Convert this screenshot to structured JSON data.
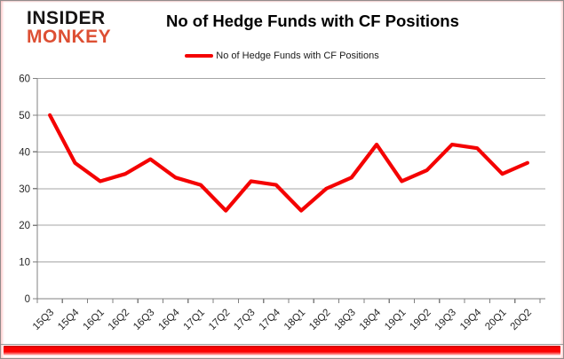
{
  "header": {
    "logo": {
      "line1": "INSIDER",
      "line2": "MONKEY"
    },
    "title": "No of Hedge Funds with CF Positions"
  },
  "legend": {
    "label": "No of Hedge Funds with CF Positions"
  },
  "colors": {
    "line": "#f40202",
    "grid": "#a6a6a6",
    "axis": "#808080",
    "tick_label": "#262626",
    "logo_black": "#161414",
    "logo_red": "#dd4f33",
    "bottom_bar": "#fb0202"
  },
  "chart_data": {
    "type": "line",
    "title": "No of Hedge Funds with CF Positions",
    "categories": [
      "15Q3",
      "15Q4",
      "16Q1",
      "16Q2",
      "16Q3",
      "16Q4",
      "17Q1",
      "17Q2",
      "17Q3",
      "17Q4",
      "18Q1",
      "18Q2",
      "18Q3",
      "18Q4",
      "19Q1",
      "19Q2",
      "19Q3",
      "19Q4",
      "20Q1",
      "20Q2"
    ],
    "series": [
      {
        "name": "No of Hedge Funds with CF Positions",
        "values": [
          50,
          37,
          32,
          34,
          38,
          33,
          31,
          24,
          32,
          31,
          24,
          30,
          33,
          42,
          32,
          35,
          42,
          41,
          34,
          37
        ]
      }
    ],
    "xlabel": "",
    "ylabel": "",
    "ylim": [
      0,
      60
    ],
    "ytick_interval": 10,
    "grid": true,
    "legend_position": "top-center"
  }
}
